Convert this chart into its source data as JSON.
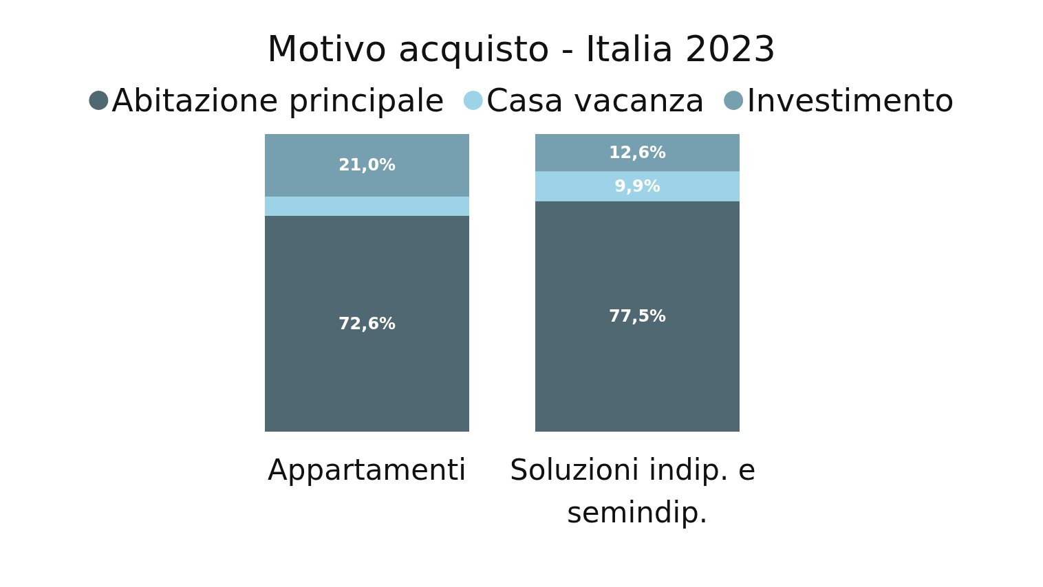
{
  "chart_data": {
    "type": "bar",
    "title": "Motivo acquisto - Italia 2023",
    "stacked": true,
    "legend": "top",
    "tick_labels": "x",
    "ylim": [
      0,
      100
    ],
    "categories": [
      "Appartamenti",
      "Soluzioni indip. e semindip."
    ],
    "series": [
      {
        "name": "Abitazione principale",
        "color": "#4f6872",
        "values": [
          72.6,
          77.5
        ],
        "value_labels": [
          "72,6%",
          "77,5%"
        ]
      },
      {
        "name": "Casa vacanza",
        "color": "#9dd3e6",
        "values": [
          6.4,
          9.9
        ],
        "value_labels": [
          null,
          "9,9%"
        ]
      },
      {
        "name": "Investimento",
        "color": "#769faf",
        "values": [
          21.0,
          12.6
        ],
        "value_labels": [
          "21,0%",
          "12,6%"
        ]
      }
    ]
  }
}
